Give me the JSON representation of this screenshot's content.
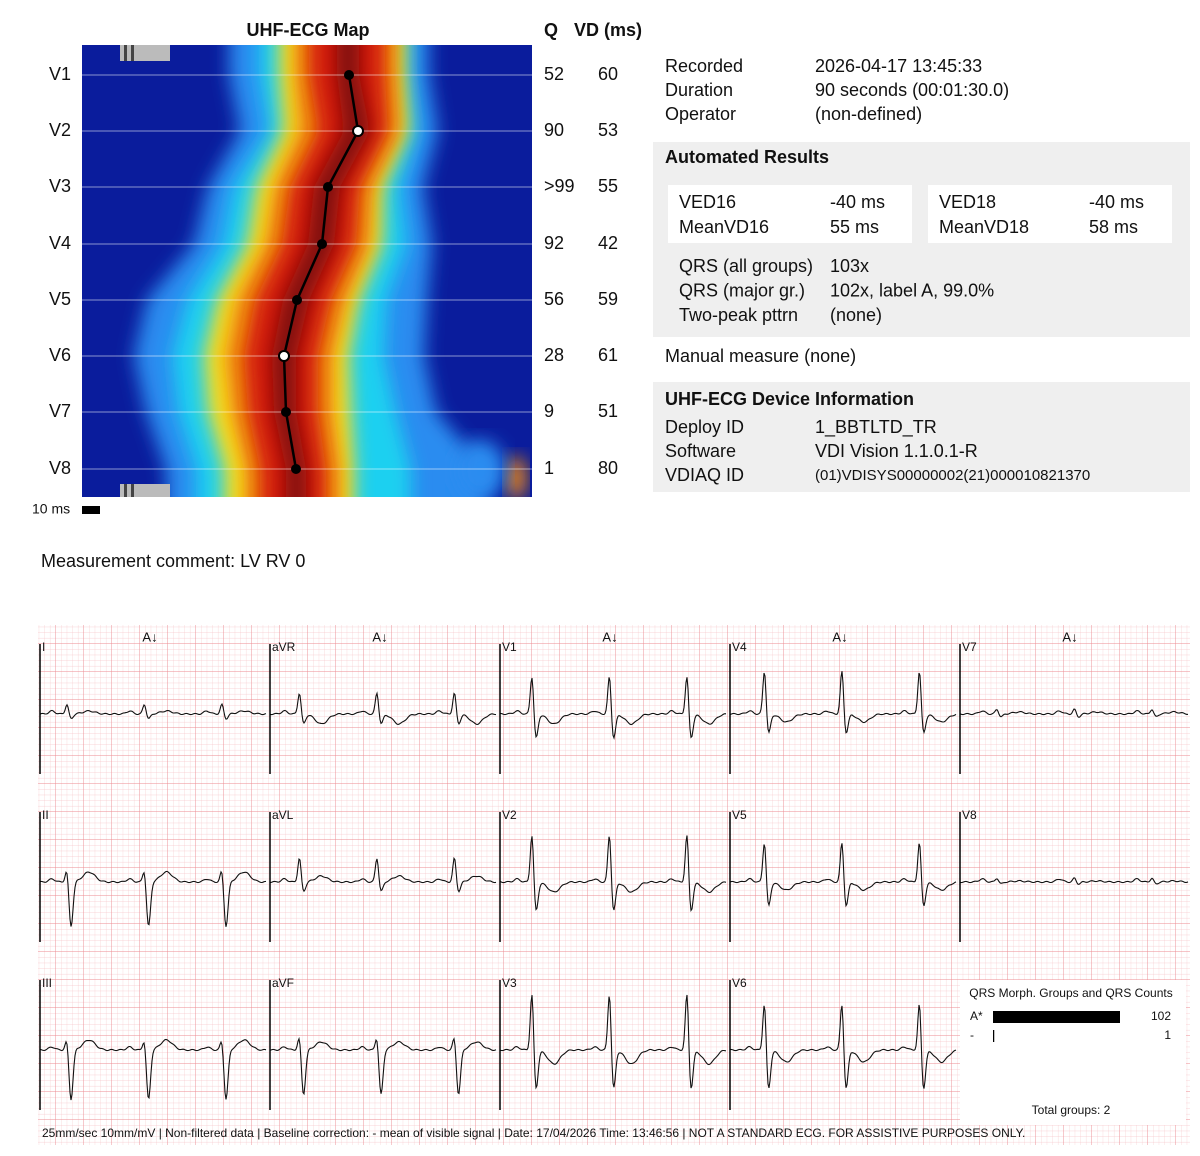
{
  "map": {
    "title": "UHF-ECG Map",
    "q_header": "Q",
    "vd_header": "VD (ms)",
    "rows": [
      {
        "lead": "V1",
        "q": "52",
        "vd": "60"
      },
      {
        "lead": "V2",
        "q": "90",
        "vd": "53"
      },
      {
        "lead": "V3",
        "q": ">99",
        "vd": "55"
      },
      {
        "lead": "V4",
        "q": "92",
        "vd": "42"
      },
      {
        "lead": "V5",
        "q": "56",
        "vd": "59"
      },
      {
        "lead": "V6",
        "q": "28",
        "vd": "61"
      },
      {
        "lead": "V7",
        "q": "9",
        "vd": "51"
      },
      {
        "lead": "V8",
        "q": "1",
        "vd": "80"
      }
    ],
    "scale": "10 ms"
  },
  "info": {
    "rows": [
      [
        "Recorded",
        "2026-04-17 13:45:33"
      ],
      [
        "Duration",
        "90 seconds (00:01:30.0)"
      ],
      [
        "Operator",
        "(non-defined)"
      ]
    ]
  },
  "results": {
    "title": "Automated Results",
    "box_1": [
      [
        "VED16",
        "-40 ms"
      ],
      [
        "MeanVD16",
        "55 ms"
      ]
    ],
    "box_2": [
      [
        "VED18",
        "-40 ms"
      ],
      [
        "MeanVD18",
        "58 ms"
      ]
    ],
    "qrs": [
      [
        "QRS (all groups)",
        "103x"
      ],
      [
        "QRS (major gr.)",
        "102x, label A, 99.0%"
      ],
      [
        "Two-peak pttrn",
        "(none)"
      ]
    ]
  },
  "manual": "Manual  measure (none)",
  "device": {
    "title": "UHF-ECG Device Information",
    "rows": [
      [
        "Deploy ID",
        "1_BBTLTD_TR"
      ],
      [
        "Software",
        "VDI Vision 1.1.0.1-R"
      ],
      [
        "VDIAQ ID",
        "(01)VDISYS00000002(21)000010821370"
      ]
    ]
  },
  "comment": "Measurement comment: LV RV 0",
  "ecg": {
    "leads": [
      [
        "I",
        "II",
        "III"
      ],
      [
        "aVR",
        "aVL",
        "aVF"
      ],
      [
        "V1",
        "V2",
        "V3"
      ],
      [
        "V4",
        "V5",
        "V6"
      ],
      [
        "V7",
        "V8"
      ]
    ],
    "markers": [
      "A↓",
      "A↓",
      "A↓",
      "A↓",
      "A↓"
    ],
    "footer": "25mm/sec   10mm/mV | Non-filtered data | Baseline correction: - mean of visible signal | Date: 17/04/2026 Time: 13:46:56 | NOT A STANDARD ECG. FOR ASSISTIVE PURPOSES ONLY.",
    "groups": {
      "title": "QRS Morph. Groups and QRS Counts",
      "rows": [
        {
          "label": "A*",
          "count": 102
        },
        {
          "label": "-",
          "count": 1
        }
      ],
      "total": "Total groups: 2"
    }
  }
}
